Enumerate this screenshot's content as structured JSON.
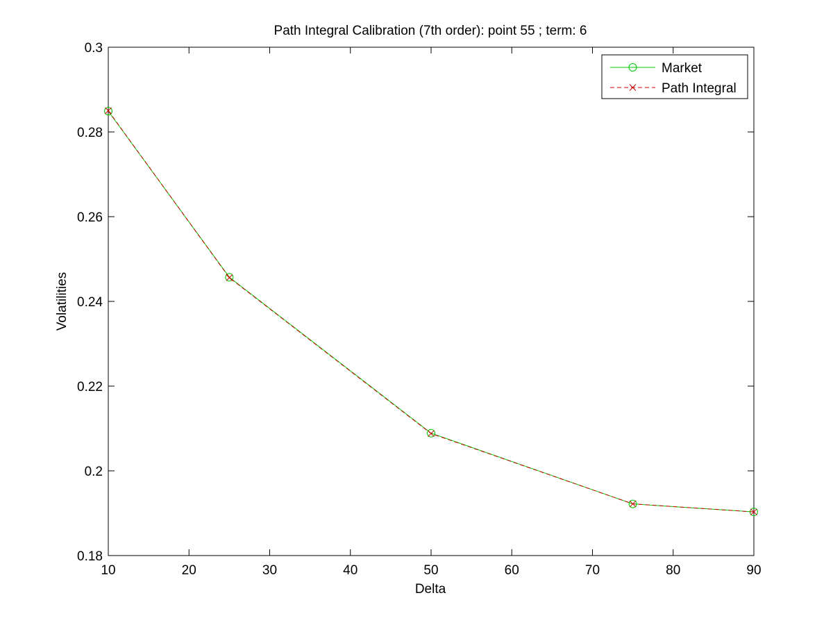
{
  "chart_data": {
    "type": "line",
    "title": "Path Integral Calibration (7th order): point 55 ; term: 6",
    "xlabel": "Delta",
    "ylabel": "Volatilities",
    "xlim": [
      10,
      90
    ],
    "ylim": [
      0.18,
      0.3
    ],
    "xticks": [
      10,
      20,
      30,
      40,
      50,
      60,
      70,
      80,
      90
    ],
    "yticks": [
      0.18,
      0.2,
      0.22,
      0.24,
      0.26,
      0.28,
      0.3
    ],
    "xtick_labels": [
      "10",
      "20",
      "30",
      "40",
      "50",
      "60",
      "70",
      "80",
      "90"
    ],
    "ytick_labels": [
      "0.18",
      "0.2",
      "0.22",
      "0.24",
      "0.26",
      "0.28",
      "0.3"
    ],
    "grid": false,
    "legend_position": "top-right",
    "x": [
      10,
      25,
      50,
      75,
      90
    ],
    "series": [
      {
        "name": "Market",
        "values": [
          0.2849,
          0.2457,
          0.2089,
          0.1922,
          0.1903
        ],
        "color": "#00cc00",
        "marker": "circle",
        "line_style": "solid"
      },
      {
        "name": "Path Integral",
        "values": [
          0.285,
          0.2456,
          0.2088,
          0.1922,
          0.1903
        ],
        "color": "#cc0000",
        "marker": "x",
        "line_style": "dashed"
      }
    ]
  }
}
